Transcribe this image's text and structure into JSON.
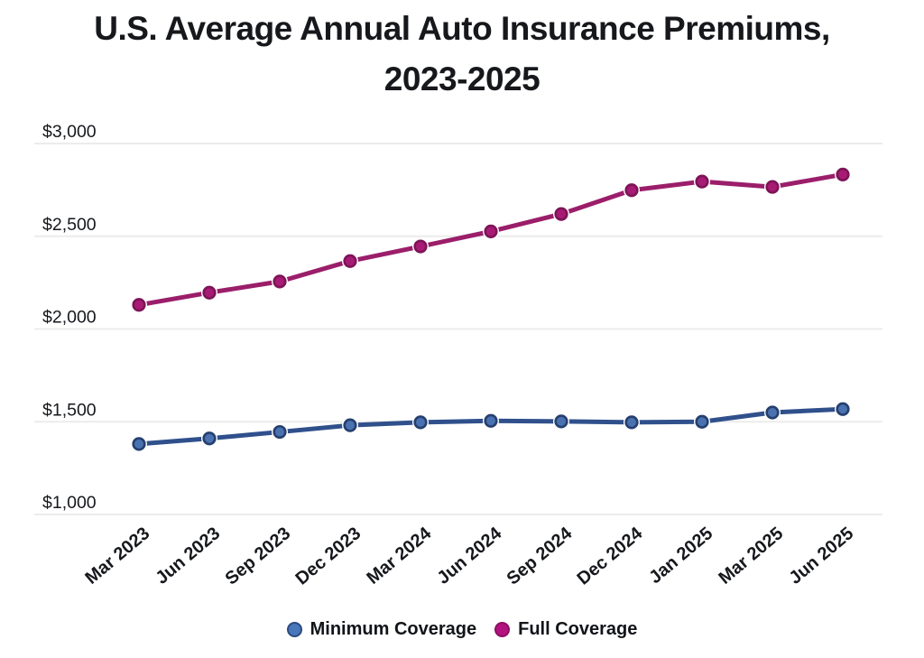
{
  "header": {
    "title": "U.S. Average Annual Auto Insurance Premiums,\n2023-2025",
    "title_color": "#16181c"
  },
  "chart_data": {
    "type": "line",
    "title": "U.S. Average Annual Auto Insurance Premiums, 2023-2025",
    "categories": [
      "Mar 2023",
      "Jun 2023",
      "Sep 2023",
      "Dec 2023",
      "Mar 2024",
      "Jun 2024",
      "Sep 2024",
      "Dec 2024",
      "Jan 2025",
      "Mar 2025",
      "Jun 2025"
    ],
    "series": [
      {
        "name": "Minimum Coverage",
        "values": [
          1380,
          1410,
          1445,
          1481,
          1497,
          1505,
          1502,
          1497,
          1500,
          1550,
          1568
        ],
        "line_color": "#30508c",
        "marker_fill": "#4a72b0",
        "marker_stroke": "#253f6e",
        "legend_fill": "#4a76ba",
        "legend_stroke": "#2c4b80"
      },
      {
        "name": "Full Coverage",
        "values": [
          2130,
          2196,
          2256,
          2366,
          2445,
          2526,
          2620,
          2748,
          2795,
          2766,
          2833
        ],
        "line_color": "#9b1e6a",
        "marker_fill": "#a81b74",
        "marker_stroke": "#7d1457",
        "legend_fill": "#b2137e",
        "legend_stroke": "#8d0f63"
      }
    ],
    "xlabel": "",
    "ylabel": "",
    "y_ticks": [
      {
        "label": "$1,000",
        "value": 1000
      },
      {
        "label": "$1,500",
        "value": 1500
      },
      {
        "label": "$2,000",
        "value": 2000
      },
      {
        "label": "$2,500",
        "value": 2500
      },
      {
        "label": "$3,000",
        "value": 3000
      }
    ],
    "ylim": [
      1000,
      3090
    ],
    "grid": true,
    "gridline_color": "#ececec",
    "tick_color": "#16181c",
    "legend_position": "bottom"
  }
}
